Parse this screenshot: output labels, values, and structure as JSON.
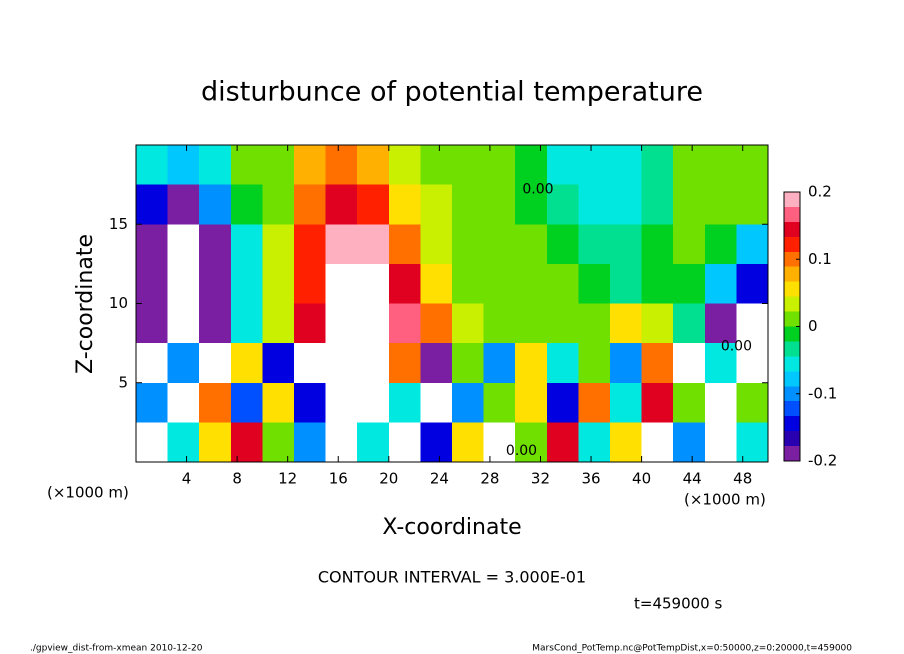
{
  "chart_data": {
    "type": "heatmap",
    "title": "disturbunce of potential temperature",
    "xlabel": "X-coordinate",
    "ylabel": "Z-coordinate",
    "x_unit_label": "(×1000 m)",
    "contour_interval_label": "CONTOUR INTERVAL = 3.000E-01",
    "time_label": "t=459000 s",
    "footer_left": "./gpview_dist-from-xmean  2010-12-20",
    "footer_right": "MarsCond_PotTemp.nc@PotTempDist,x=0:50000,z=0:20000,t=459000",
    "xlim": [
      0,
      50
    ],
    "ylim": [
      0,
      20
    ],
    "xticks": [
      4,
      8,
      12,
      16,
      20,
      24,
      28,
      32,
      36,
      40,
      44,
      48
    ],
    "yticks": [
      5,
      10,
      15
    ],
    "clim": [
      -0.2,
      0.2
    ],
    "cticks": [
      -0.2,
      -0.1,
      0,
      0.1,
      0.2
    ],
    "colorscale": [
      "#7b1fa2",
      "#2800b0",
      "#0000e0",
      "#0050ff",
      "#0090ff",
      "#00c8ff",
      "#00e8e0",
      "#00e090",
      "#00d020",
      "#70e000",
      "#c8f000",
      "#ffe000",
      "#ffb000",
      "#ff7000",
      "#ff2000",
      "#e00020",
      "#ff6080",
      "#ffb0c0"
    ],
    "over_color": "#ffffff",
    "x": [
      1.25,
      3.75,
      6.25,
      8.75,
      11.25,
      13.75,
      16.25,
      18.75,
      21.25,
      23.75,
      26.25,
      28.75,
      31.25,
      33.75,
      36.25,
      38.75,
      41.25,
      43.75,
      46.25,
      48.75
    ],
    "y": [
      18.75,
      16.25,
      13.75,
      11.25,
      8.75,
      6.25,
      3.75,
      1.25
    ],
    "values": [
      [
        -0.05,
        -0.08,
        -0.05,
        0,
        0.02,
        0.08,
        0.1,
        0.08,
        0.04,
        0.02,
        0.01,
        0,
        -0.02,
        -0.05,
        -0.06,
        -0.05,
        -0.03,
        0,
        0.02,
        0.01
      ],
      [
        -0.15,
        -0.18,
        -0.1,
        -0.02,
        0.02,
        0.1,
        0.14,
        0.12,
        0.06,
        0.03,
        0.01,
        0,
        -0.01,
        -0.03,
        -0.05,
        -0.05,
        -0.03,
        0.01,
        0.02,
        0
      ],
      [
        -0.18,
        0.25,
        -0.18,
        -0.05,
        0.03,
        0.12,
        0.18,
        0.18,
        0.1,
        0.04,
        0.01,
        0,
        0,
        -0.02,
        -0.04,
        -0.04,
        -0.02,
        0,
        -0.02,
        -0.08
      ],
      [
        -0.2,
        0.25,
        -0.2,
        -0.06,
        0.03,
        0.13,
        0.25,
        0.25,
        0.14,
        0.06,
        0.02,
        0.01,
        0,
        0,
        -0.02,
        -0.03,
        -0.02,
        -0.02,
        -0.08,
        -0.15
      ],
      [
        -0.2,
        0.25,
        -0.18,
        -0.05,
        0.04,
        0.14,
        0.25,
        0.25,
        0.16,
        0.1,
        0.04,
        0.02,
        0,
        0.01,
        0.02,
        0.05,
        0.04,
        -0.03,
        -0.18,
        0.25
      ],
      [
        0.25,
        -0.1,
        0.25,
        0.05,
        -0.15,
        0.25,
        0.25,
        0.25,
        0.1,
        -0.2,
        0,
        -0.1,
        0.05,
        -0.05,
        0,
        -0.1,
        0.1,
        0.25,
        -0.05,
        0.25
      ],
      [
        -0.1,
        0.25,
        0.1,
        -0.12,
        0.05,
        -0.15,
        0.25,
        0.25,
        -0.05,
        0.25,
        -0.1,
        0.02,
        0.05,
        -0.15,
        0.1,
        -0.05,
        0.15,
        0,
        0.25,
        0
      ],
      [
        0.25,
        -0.05,
        0.05,
        0.15,
        0,
        -0.1,
        0.25,
        -0.05,
        0.25,
        -0.15,
        0.05,
        0.25,
        0,
        0.15,
        -0.05,
        0.05,
        0.25,
        -0.1,
        0.25,
        -0.05
      ]
    ],
    "annotations": [
      {
        "text": "0.00",
        "x": 31.8,
        "y": 17.2
      },
      {
        "text": "0.00",
        "x": 30.5,
        "y": 0.7
      },
      {
        "text": "0.00",
        "x": 47.5,
        "y": 7.3
      }
    ]
  }
}
